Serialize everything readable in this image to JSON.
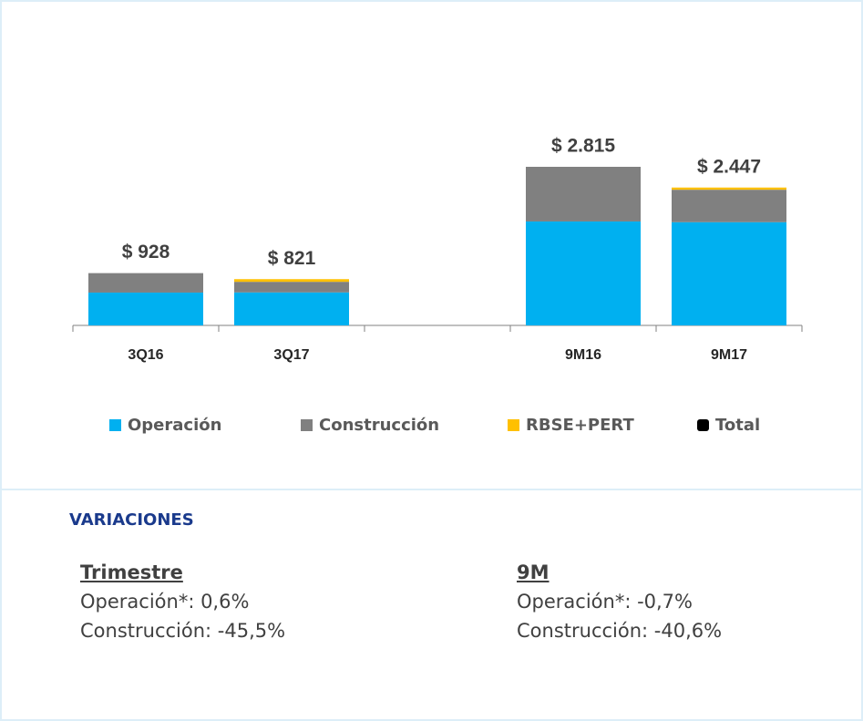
{
  "chart_data": {
    "type": "stacked_bar",
    "categories": [
      "3Q16",
      "3Q17",
      null,
      "9M16",
      "9M17"
    ],
    "series": [
      {
        "name": "Operación",
        "color": "#00b0f0",
        "values": [
          583,
          586,
          null,
          1845,
          1832
        ]
      },
      {
        "name": "Construcción",
        "color": "#808080",
        "values": [
          345,
          188,
          null,
          970,
          576
        ]
      },
      {
        "name": "RBSE+PERT",
        "color": "#ffc000",
        "values": [
          0,
          47,
          null,
          0,
          39
        ]
      }
    ],
    "totals": {
      "name": "Total",
      "color": "#000000",
      "values": [
        928,
        821,
        null,
        2815,
        2447
      ],
      "value_labels": [
        "$ 928",
        "$ 821",
        null,
        "$ 2.815",
        "$ 2.447"
      ]
    }
  },
  "variations": {
    "title": "VARIACIONES",
    "columns": [
      {
        "heading": "Trimestre",
        "lines": [
          "Operación*: 0,6%",
          "Construcción: -45,5%"
        ]
      },
      {
        "heading": "9M",
        "lines": [
          "Operación*: -0,7%",
          "Construcción: -40,6%"
        ]
      }
    ]
  }
}
